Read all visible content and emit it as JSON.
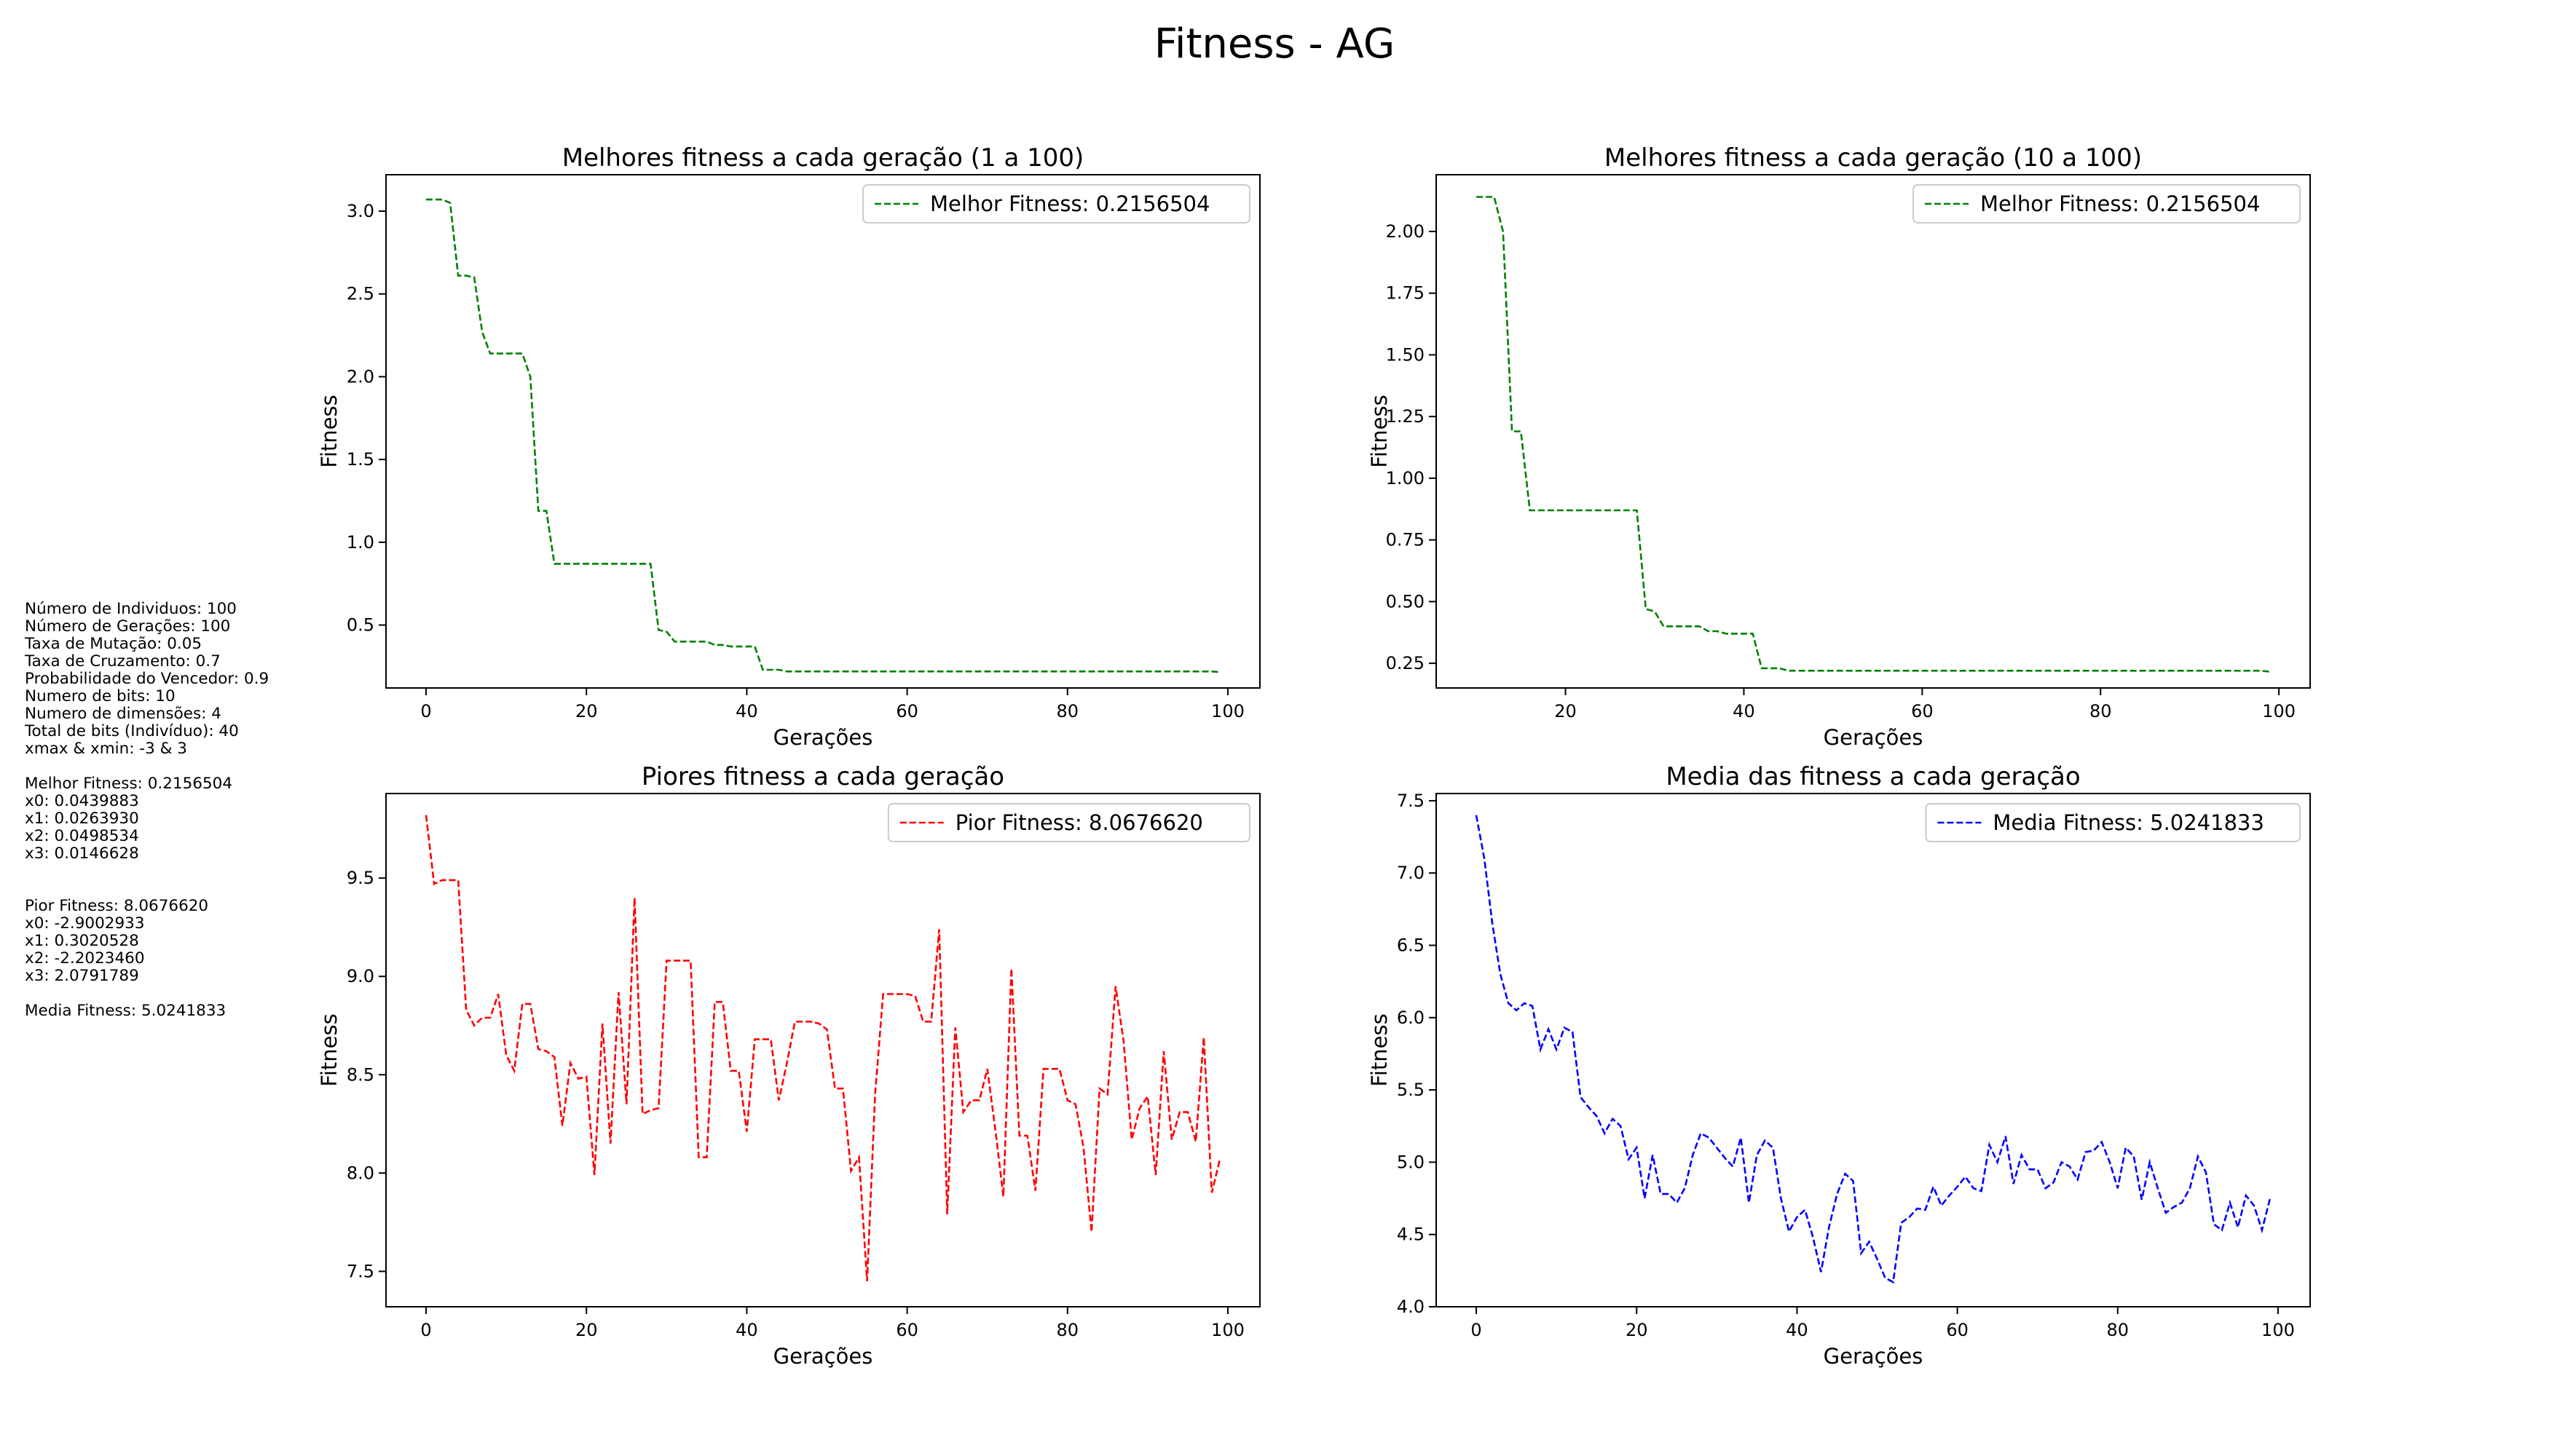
{
  "figure_title": "Fitness - AG",
  "info_panel": [
    "Número de Individuos: 100",
    "Número de Gerações: 100",
    "Taxa de Mutação: 0.05",
    "Taxa de Cruzamento: 0.7",
    "Probabilidade do Vencedor: 0.9",
    "Numero de bits: 10",
    "Numero de dimensões: 4",
    "Total de bits (Indivíduo): 40",
    "xmax & xmin: -3 & 3",
    "",
    "Melhor Fitness: 0.2156504",
    "x0: 0.0439883",
    "x1: 0.0263930",
    "x2: 0.0498534",
    "x3: 0.0146628",
    "",
    "",
    "Pior Fitness: 8.0676620",
    "x0: -2.9002933",
    "x1: 0.3020528",
    "x2: -2.2023460",
    "x3: 2.0791789",
    "",
    "Media Fitness: 5.0241833"
  ],
  "chart_data": [
    {
      "type": "line",
      "title": "Melhores fitness a cada geração (1 a 100)",
      "xlabel": "Gerações",
      "ylabel": "Fitness",
      "xlim": [
        -5,
        104
      ],
      "ylim": [
        0.12,
        3.22
      ],
      "xticks": [
        0,
        20,
        40,
        60,
        80,
        100
      ],
      "yticks": [
        0.5,
        1.0,
        1.5,
        2.0,
        2.5,
        3.0
      ],
      "xtick_labels": [
        "0",
        "20",
        "40",
        "60",
        "80",
        "100"
      ],
      "ytick_labels": [
        "0.5",
        "1.0",
        "1.5",
        "2.0",
        "2.5",
        "3.0"
      ],
      "grid": false,
      "legend": "upper right",
      "series": [
        {
          "name": "Melhor Fitness: 0.2156504",
          "color": "#008000",
          "style": "dashed",
          "x": [
            0,
            1,
            2,
            3,
            4,
            5,
            6,
            7,
            8,
            9,
            10,
            11,
            12,
            13,
            14,
            15,
            16,
            17,
            18,
            19,
            20,
            21,
            22,
            23,
            24,
            25,
            26,
            27,
            28,
            29,
            30,
            31,
            32,
            33,
            34,
            35,
            36,
            37,
            38,
            39,
            40,
            41,
            42,
            43,
            44,
            45,
            46,
            47,
            48,
            49,
            50,
            51,
            52,
            53,
            54,
            55,
            56,
            57,
            58,
            59,
            60,
            61,
            62,
            63,
            64,
            65,
            66,
            67,
            68,
            69,
            70,
            71,
            72,
            73,
            74,
            75,
            76,
            77,
            78,
            79,
            80,
            81,
            82,
            83,
            84,
            85,
            86,
            87,
            88,
            89,
            90,
            91,
            92,
            93,
            94,
            95,
            96,
            97,
            98,
            99
          ],
          "y": [
            3.07,
            3.07,
            3.07,
            3.05,
            2.61,
            2.61,
            2.6,
            2.27,
            2.14,
            2.14,
            2.14,
            2.14,
            2.14,
            2.0,
            1.19,
            1.19,
            0.87,
            0.87,
            0.87,
            0.87,
            0.87,
            0.87,
            0.87,
            0.87,
            0.87,
            0.87,
            0.87,
            0.87,
            0.87,
            0.47,
            0.46,
            0.4,
            0.4,
            0.4,
            0.4,
            0.4,
            0.38,
            0.38,
            0.37,
            0.37,
            0.37,
            0.37,
            0.23,
            0.23,
            0.23,
            0.22,
            0.22,
            0.22,
            0.22,
            0.22,
            0.22,
            0.22,
            0.22,
            0.22,
            0.22,
            0.22,
            0.22,
            0.22,
            0.22,
            0.22,
            0.22,
            0.22,
            0.22,
            0.22,
            0.22,
            0.22,
            0.22,
            0.22,
            0.22,
            0.22,
            0.22,
            0.22,
            0.22,
            0.22,
            0.22,
            0.22,
            0.22,
            0.22,
            0.22,
            0.22,
            0.22,
            0.22,
            0.22,
            0.22,
            0.22,
            0.22,
            0.22,
            0.22,
            0.22,
            0.22,
            0.22,
            0.22,
            0.22,
            0.22,
            0.22,
            0.22,
            0.22,
            0.22,
            0.22,
            0.2156504
          ]
        }
      ]
    },
    {
      "type": "line",
      "title": "Melhores fitness a cada geração (10 a 100)",
      "xlabel": "Gerações",
      "ylabel": "Fitness",
      "xlim": [
        5.5,
        103.5
      ],
      "ylim": [
        0.15,
        2.23
      ],
      "xticks": [
        20,
        40,
        60,
        80,
        100
      ],
      "yticks": [
        0.25,
        0.5,
        0.75,
        1.0,
        1.25,
        1.5,
        1.75,
        2.0
      ],
      "xtick_labels": [
        "20",
        "40",
        "60",
        "80",
        "100"
      ],
      "ytick_labels": [
        "0.25",
        "0.50",
        "0.75",
        "1.00",
        "1.25",
        "1.50",
        "1.75",
        "2.00"
      ],
      "grid": false,
      "legend": "upper right",
      "series": [
        {
          "name": "Melhor Fitness: 0.2156504",
          "color": "#008000",
          "style": "dashed",
          "x": [
            10,
            11,
            12,
            13,
            14,
            15,
            16,
            17,
            18,
            19,
            20,
            21,
            22,
            23,
            24,
            25,
            26,
            27,
            28,
            29,
            30,
            31,
            32,
            33,
            34,
            35,
            36,
            37,
            38,
            39,
            40,
            41,
            42,
            43,
            44,
            45,
            46,
            47,
            48,
            49,
            50,
            51,
            52,
            53,
            54,
            55,
            56,
            57,
            58,
            59,
            60,
            61,
            62,
            63,
            64,
            65,
            66,
            67,
            68,
            69,
            70,
            71,
            72,
            73,
            74,
            75,
            76,
            77,
            78,
            79,
            80,
            81,
            82,
            83,
            84,
            85,
            86,
            87,
            88,
            89,
            90,
            91,
            92,
            93,
            94,
            95,
            96,
            97,
            98,
            99
          ],
          "y": [
            2.14,
            2.14,
            2.14,
            2.0,
            1.19,
            1.19,
            0.87,
            0.87,
            0.87,
            0.87,
            0.87,
            0.87,
            0.87,
            0.87,
            0.87,
            0.87,
            0.87,
            0.87,
            0.87,
            0.47,
            0.46,
            0.4,
            0.4,
            0.4,
            0.4,
            0.4,
            0.38,
            0.38,
            0.37,
            0.37,
            0.37,
            0.37,
            0.23,
            0.23,
            0.23,
            0.22,
            0.22,
            0.22,
            0.22,
            0.22,
            0.22,
            0.22,
            0.22,
            0.22,
            0.22,
            0.22,
            0.22,
            0.22,
            0.22,
            0.22,
            0.22,
            0.22,
            0.22,
            0.22,
            0.22,
            0.22,
            0.22,
            0.22,
            0.22,
            0.22,
            0.22,
            0.22,
            0.22,
            0.22,
            0.22,
            0.22,
            0.22,
            0.22,
            0.22,
            0.22,
            0.22,
            0.22,
            0.22,
            0.22,
            0.22,
            0.22,
            0.22,
            0.22,
            0.22,
            0.22,
            0.22,
            0.22,
            0.22,
            0.22,
            0.22,
            0.22,
            0.22,
            0.22,
            0.22,
            0.2156504
          ]
        }
      ]
    },
    {
      "type": "line",
      "title": "Piores fitness a cada geração",
      "xlabel": "Gerações",
      "ylabel": "Fitness",
      "xlim": [
        -5,
        104
      ],
      "ylim": [
        7.32,
        9.93
      ],
      "xticks": [
        0,
        20,
        40,
        60,
        80,
        100
      ],
      "yticks": [
        7.5,
        8.0,
        8.5,
        9.0,
        9.5
      ],
      "xtick_labels": [
        "0",
        "20",
        "40",
        "60",
        "80",
        "100"
      ],
      "ytick_labels": [
        "7.5",
        "8.0",
        "8.5",
        "9.0",
        "9.5"
      ],
      "grid": false,
      "legend": "upper right",
      "series": [
        {
          "name": "Pior Fitness: 8.0676620",
          "color": "#ff0000",
          "style": "dashed",
          "x": [
            0,
            1,
            2,
            3,
            4,
            5,
            6,
            7,
            8,
            9,
            10,
            11,
            12,
            13,
            14,
            15,
            16,
            17,
            18,
            19,
            20,
            21,
            22,
            23,
            24,
            25,
            26,
            27,
            28,
            29,
            30,
            31,
            32,
            33,
            34,
            35,
            36,
            37,
            38,
            39,
            40,
            41,
            42,
            43,
            44,
            45,
            46,
            47,
            48,
            49,
            50,
            51,
            52,
            53,
            54,
            55,
            56,
            57,
            58,
            59,
            60,
            61,
            62,
            63,
            64,
            65,
            66,
            67,
            68,
            69,
            70,
            71,
            72,
            73,
            74,
            75,
            76,
            77,
            78,
            79,
            80,
            81,
            82,
            83,
            84,
            85,
            86,
            87,
            88,
            89,
            90,
            91,
            92,
            93,
            94,
            95,
            96,
            97,
            98,
            99
          ],
          "y": [
            9.82,
            9.47,
            9.49,
            9.49,
            9.49,
            8.83,
            8.75,
            8.79,
            8.79,
            8.91,
            8.6,
            8.52,
            8.86,
            8.86,
            8.63,
            8.62,
            8.59,
            8.24,
            8.56,
            8.48,
            8.49,
            7.99,
            8.76,
            8.15,
            8.92,
            8.35,
            9.4,
            8.3,
            8.32,
            8.33,
            9.08,
            9.08,
            9.08,
            9.08,
            8.08,
            8.08,
            8.87,
            8.87,
            8.52,
            8.52,
            8.21,
            8.68,
            8.68,
            8.68,
            8.37,
            8.56,
            8.77,
            8.77,
            8.77,
            8.76,
            8.73,
            8.43,
            8.43,
            8.01,
            8.08,
            7.45,
            8.4,
            8.91,
            8.91,
            8.91,
            8.91,
            8.9,
            8.77,
            8.77,
            9.24,
            7.79,
            8.74,
            8.31,
            8.37,
            8.37,
            8.53,
            8.22,
            7.88,
            9.04,
            8.19,
            8.19,
            7.91,
            8.53,
            8.53,
            8.53,
            8.37,
            8.35,
            8.13,
            7.7,
            8.43,
            8.4,
            8.95,
            8.67,
            8.17,
            8.33,
            8.39,
            7.99,
            8.62,
            8.17,
            8.31,
            8.31,
            8.16,
            8.69,
            7.9,
            8.07
          ]
        }
      ]
    },
    {
      "type": "line",
      "title": "Media das fitness a cada geração",
      "xlabel": "Gerações",
      "ylabel": "Fitness",
      "xlim": [
        -5,
        104
      ],
      "ylim": [
        4.0,
        7.55
      ],
      "xticks": [
        0,
        20,
        40,
        60,
        80,
        100
      ],
      "yticks": [
        4.0,
        4.5,
        5.0,
        5.5,
        6.0,
        6.5,
        7.0,
        7.5
      ],
      "xtick_labels": [
        "0",
        "20",
        "40",
        "60",
        "80",
        "100"
      ],
      "ytick_labels": [
        "4.0",
        "4.5",
        "5.0",
        "5.5",
        "6.0",
        "6.5",
        "7.0",
        "7.5"
      ],
      "grid": false,
      "legend": "upper right",
      "series": [
        {
          "name": "Media Fitness: 5.0241833",
          "color": "#0000ff",
          "style": "dashed",
          "x": [
            0,
            1,
            2,
            3,
            4,
            5,
            6,
            7,
            8,
            9,
            10,
            11,
            12,
            13,
            14,
            15,
            16,
            17,
            18,
            19,
            20,
            21,
            22,
            23,
            24,
            25,
            26,
            27,
            28,
            29,
            30,
            31,
            32,
            33,
            34,
            35,
            36,
            37,
            38,
            39,
            40,
            41,
            42,
            43,
            44,
            45,
            46,
            47,
            48,
            49,
            50,
            51,
            52,
            53,
            54,
            55,
            56,
            57,
            58,
            59,
            60,
            61,
            62,
            63,
            64,
            65,
            66,
            67,
            68,
            69,
            70,
            71,
            72,
            73,
            74,
            75,
            76,
            77,
            78,
            79,
            80,
            81,
            82,
            83,
            84,
            85,
            86,
            87,
            88,
            89,
            90,
            91,
            92,
            93,
            94,
            95,
            96,
            97,
            98,
            99
          ],
          "y": [
            7.4,
            7.1,
            6.65,
            6.3,
            6.1,
            6.05,
            6.1,
            6.08,
            5.78,
            5.92,
            5.78,
            5.93,
            5.9,
            5.45,
            5.38,
            5.32,
            5.2,
            5.3,
            5.25,
            5.02,
            5.1,
            4.75,
            5.05,
            4.78,
            4.78,
            4.72,
            4.82,
            5.05,
            5.2,
            5.17,
            5.1,
            5.03,
            4.97,
            5.17,
            4.72,
            5.05,
            5.15,
            5.1,
            4.75,
            4.52,
            4.62,
            4.67,
            4.48,
            4.24,
            4.55,
            4.78,
            4.92,
            4.87,
            4.37,
            4.45,
            4.33,
            4.2,
            4.17,
            4.58,
            4.62,
            4.68,
            4.67,
            4.83,
            4.7,
            4.77,
            4.83,
            4.9,
            4.82,
            4.8,
            5.12,
            5.0,
            5.18,
            4.85,
            5.05,
            4.95,
            4.95,
            4.82,
            4.86,
            5.0,
            4.97,
            4.88,
            5.07,
            5.08,
            5.14,
            5.0,
            4.82,
            5.1,
            5.04,
            4.74,
            5.0,
            4.82,
            4.65,
            4.69,
            4.72,
            4.82,
            5.04,
            4.93,
            4.57,
            4.53,
            4.72,
            4.55,
            4.77,
            4.7,
            4.53,
            4.75
          ]
        }
      ]
    }
  ]
}
